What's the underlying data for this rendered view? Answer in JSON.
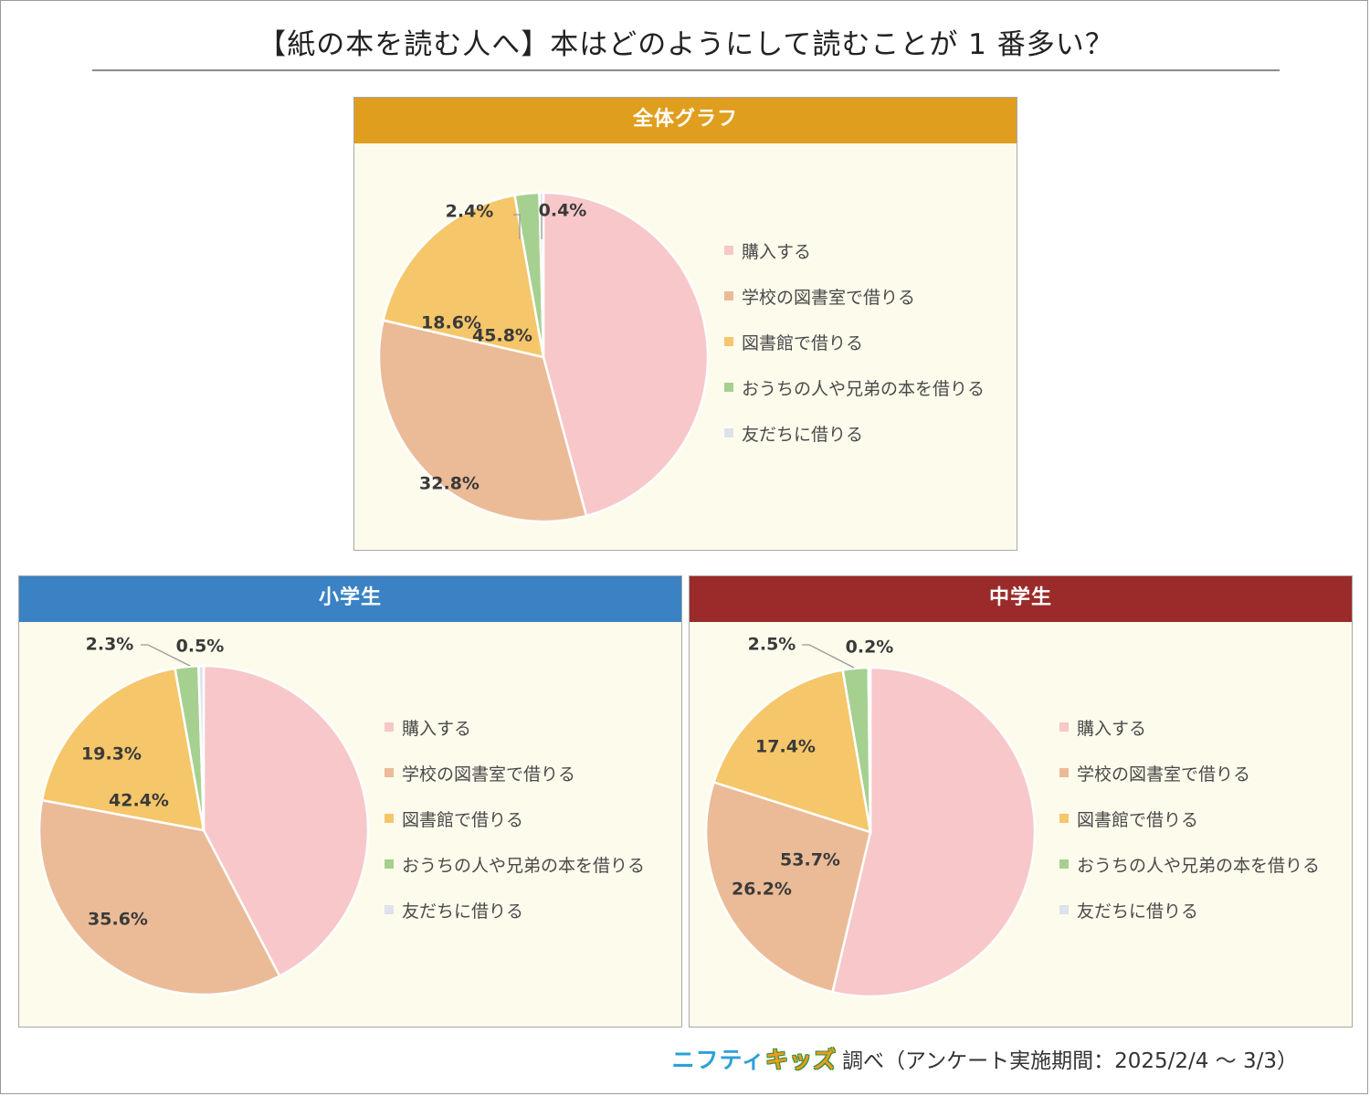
{
  "title": "【紙の本を読む人へ】本はどのようにして読むことが 1 番多い？",
  "legend_labels": [
    "購入する",
    "学校の図書室で借りる",
    "図書館で借りる",
    "おうちの人や兄弟の本を借りる",
    "友だちに借りる"
  ],
  "colors": [
    "#f7c7c9",
    "#ebbb97",
    "#f5c66a",
    "#a6d08f",
    "#dde2ec"
  ],
  "footer": {
    "brand_part1": "ニフティ",
    "brand_part2": "キッズ",
    "text": "調べ（アンケート実施期間：2025/2/4 ～ 3/3）"
  },
  "chart_data": [
    {
      "type": "pie",
      "title": "全体グラフ",
      "header_color": "#e09e1e",
      "categories": [
        "購入する",
        "学校の図書室で借りる",
        "図書館で借りる",
        "おうちの人や兄弟の本を借りる",
        "友だちに借りる"
      ],
      "values": [
        45.8,
        32.8,
        18.6,
        2.4,
        0.4
      ],
      "value_labels": [
        "45.8%",
        "32.8%",
        "18.6%",
        "2.4%",
        "0.4%"
      ],
      "legend": "right"
    },
    {
      "type": "pie",
      "title": "小学生",
      "header_color": "#3a82c4",
      "categories": [
        "購入する",
        "学校の図書室で借りる",
        "図書館で借りる",
        "おうちの人や兄弟の本を借りる",
        "友だちに借りる"
      ],
      "values": [
        42.4,
        35.6,
        19.3,
        2.3,
        0.5
      ],
      "value_labels": [
        "42.4%",
        "35.6%",
        "19.3%",
        "2.3%",
        "0.5%"
      ],
      "legend": "right"
    },
    {
      "type": "pie",
      "title": "中学生",
      "header_color": "#9b2b2b",
      "categories": [
        "購入する",
        "学校の図書室で借りる",
        "図書館で借りる",
        "おうちの人や兄弟の本を借りる",
        "友だちに借りる"
      ],
      "values": [
        53.7,
        26.2,
        17.4,
        2.5,
        0.2
      ],
      "value_labels": [
        "53.7%",
        "26.2%",
        "17.4%",
        "2.5%",
        "0.2%"
      ],
      "legend": "right"
    }
  ]
}
